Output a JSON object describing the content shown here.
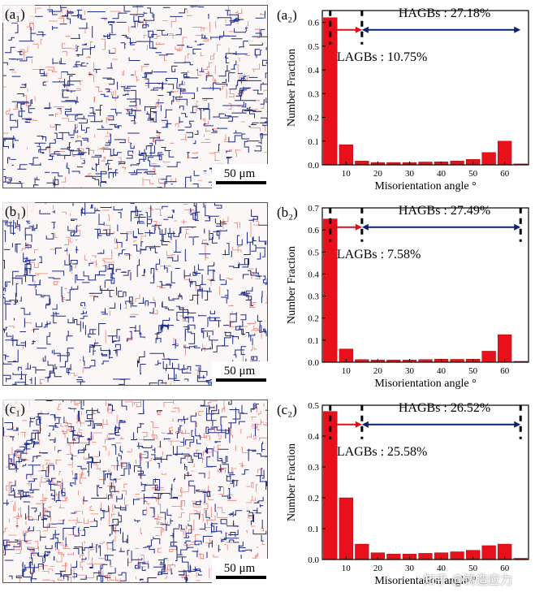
{
  "chart_data": [
    {
      "type": "bar",
      "panel_label": "(a₂)",
      "map_label": "(a₁)",
      "scale_bar": "50 μm",
      "x": [
        5,
        10,
        15,
        20,
        25,
        30,
        35,
        40,
        45,
        50,
        55,
        60,
        65
      ],
      "values": [
        0.62,
        0.085,
        0.016,
        0.01,
        0.01,
        0.01,
        0.012,
        0.013,
        0.016,
        0.023,
        0.052,
        0.1,
        0.004
      ],
      "ylim": [
        0,
        0.65
      ],
      "yticks": [
        0.0,
        0.1,
        0.2,
        0.3,
        0.4,
        0.5,
        0.6
      ],
      "xticks": [
        10,
        20,
        30,
        40,
        50,
        60
      ],
      "xlim": [
        2.5,
        67.5
      ],
      "xlabel": "Misorientation angle °",
      "ylabel": "Number Fraction",
      "annotations": {
        "hagb": "HAGBs : 27.18%",
        "lagb": "LAGBs : 10.75%"
      }
    },
    {
      "type": "bar",
      "panel_label": "(b₂)",
      "map_label": "(b₁)",
      "scale_bar": "50 μm",
      "x": [
        5,
        10,
        15,
        20,
        25,
        30,
        35,
        40,
        45,
        50,
        55,
        60,
        65
      ],
      "values": [
        0.65,
        0.06,
        0.012,
        0.01,
        0.01,
        0.01,
        0.012,
        0.014,
        0.013,
        0.014,
        0.05,
        0.125,
        0.004
      ],
      "ylim": [
        0,
        0.7
      ],
      "yticks": [
        0.0,
        0.1,
        0.2,
        0.3,
        0.4,
        0.5,
        0.6,
        0.7
      ],
      "xticks": [
        10,
        20,
        30,
        40,
        50,
        60
      ],
      "xlim": [
        2.5,
        67.5
      ],
      "xlabel": "Misorientation angle °",
      "ylabel": "Number Fraction",
      "annotations": {
        "hagb": "HAGBs : 27.49%",
        "lagb": "LAGBs : 7.58%"
      }
    },
    {
      "type": "bar",
      "panel_label": "(c₂)",
      "map_label": "(c₁)",
      "scale_bar": "50 μm",
      "x": [
        5,
        10,
        15,
        20,
        25,
        30,
        35,
        40,
        45,
        50,
        55,
        60,
        65
      ],
      "values": [
        0.48,
        0.2,
        0.05,
        0.022,
        0.018,
        0.018,
        0.02,
        0.022,
        0.025,
        0.03,
        0.045,
        0.05,
        0.004
      ],
      "ylim": [
        0,
        0.5
      ],
      "yticks": [
        0.0,
        0.1,
        0.2,
        0.3,
        0.4,
        0.5
      ],
      "xticks": [
        10,
        20,
        30,
        40,
        50,
        60
      ],
      "xlim": [
        2.5,
        67.5
      ],
      "xlabel": "Misorientation angle °",
      "ylabel": "Number Fraction",
      "annotations": {
        "hagb": "HAGBs : 26.52%",
        "lagb": "LAGBs : 25.58%"
      }
    }
  ],
  "colors": {
    "bar": "#e8101a",
    "arrow_hagb": "#0f1f72",
    "arrow_lagb": "#d8101a",
    "lagb_line": "#e87f76",
    "hagb_line": "#1c2a8a"
  },
  "watermark": "知乎 @铸造应力"
}
